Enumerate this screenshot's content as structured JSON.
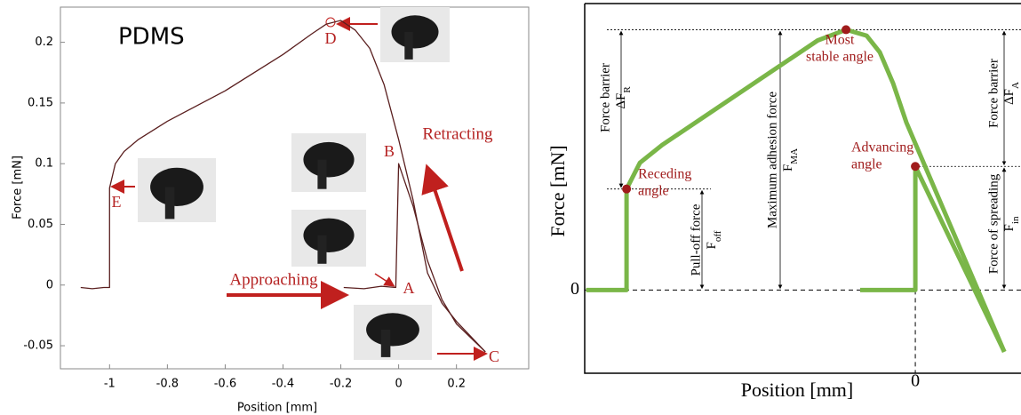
{
  "chart_data": [
    {
      "type": "line",
      "title": "PDMS",
      "xlabel": "Position [mm]",
      "ylabel": "Force [mN]",
      "xlim": [
        -1.17,
        0.45
      ],
      "ylim": [
        -0.069,
        0.229
      ],
      "xticks": [
        -1,
        -0.8,
        -0.6,
        -0.4,
        -0.2,
        0,
        0.2
      ],
      "yticks": [
        -0.05,
        0,
        0.05,
        0.1,
        0.15,
        0.2
      ],
      "series": [
        {
          "color": "#5a1f1f",
          "x": [
            -1.1,
            -1.06,
            -1.02,
            -1.0,
            -1.0,
            -0.98,
            -0.95,
            -0.9,
            -0.8,
            -0.6,
            -0.4,
            -0.3,
            -0.25,
            -0.2,
            -0.15,
            -0.1,
            -0.05,
            0,
            0.05,
            0.1,
            0.15,
            0.2,
            0.3
          ],
          "values": [
            -0.002,
            -0.003,
            -0.002,
            -0.002,
            0.08,
            0.1,
            0.11,
            0.12,
            0.135,
            0.16,
            0.19,
            0.207,
            0.215,
            0.218,
            0.21,
            0.195,
            0.165,
            0.12,
            0.07,
            0.01,
            -0.015,
            -0.03,
            -0.055
          ]
        },
        {
          "color": "#5a1f1f",
          "x": [
            -0.19,
            -0.12,
            -0.06,
            -0.01,
            0,
            0.05,
            0.1,
            0.15,
            0.2,
            0.3
          ],
          "values": [
            -0.002,
            -0.003,
            -0.001,
            -0.002,
            0.1,
            0.065,
            0.02,
            -0.012,
            -0.032,
            -0.055
          ]
        }
      ],
      "annotations": [
        {
          "text": "D"
        },
        {
          "text": "B"
        },
        {
          "text": "A"
        },
        {
          "text": "C"
        },
        {
          "text": "E"
        },
        {
          "text": "Approaching"
        },
        {
          "text": "Retracting"
        }
      ]
    },
    {
      "type": "line",
      "xlabel": "Position [mm]",
      "ylabel": "Force [mN]",
      "xlim": [
        -1.145,
        0.366
      ],
      "ylim": [
        -0.07,
        0.241
      ],
      "xticks": [
        0
      ],
      "yticks": [
        0
      ],
      "series": [
        {
          "color": "#7ab648",
          "x": [
            -1.14,
            -1.0,
            -1.0,
            -0.954,
            -0.877,
            -0.338,
            -0.24,
            -0.169,
            -0.123,
            -0.077,
            -0.031,
            0.308
          ],
          "values": [
            0,
            0,
            0.085,
            0.107,
            0.122,
            0.21,
            0.219,
            0.214,
            0.2,
            0.174,
            0.141,
            -0.052
          ]
        },
        {
          "color": "#7ab648",
          "x": [
            -0.191,
            0,
            0,
            0.308
          ],
          "values": [
            0,
            0,
            0.104,
            -0.052
          ]
        }
      ],
      "points": {
        "color": "#a01c1c",
        "x": [
          -1.0,
          -0.24,
          0
        ],
        "values": [
          0.085,
          0.219,
          0.104
        ]
      },
      "annotations": [
        {
          "lines": [
            "Most",
            "stable angle"
          ]
        },
        {
          "lines": [
            "Receding",
            "angle"
          ]
        },
        {
          "lines": [
            "Advancing",
            "angle"
          ]
        },
        {
          "text": "Force barrier",
          "symbol": "ΔF",
          "sub": "R"
        },
        {
          "text": "Pull-off force",
          "symbol": "F",
          "sub": "off"
        },
        {
          "text": "Maximum adhesion force",
          "symbol": "F",
          "sub": "MA"
        },
        {
          "text": "Force of spreading",
          "symbol": "F",
          "sub": "in"
        },
        {
          "text": "Force barrier",
          "symbol": "ΔF",
          "sub": "A"
        }
      ]
    }
  ]
}
